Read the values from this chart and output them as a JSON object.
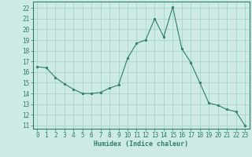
{
  "x": [
    0,
    1,
    2,
    3,
    4,
    5,
    6,
    7,
    8,
    9,
    10,
    11,
    12,
    13,
    14,
    15,
    16,
    17,
    18,
    19,
    20,
    21,
    22,
    23
  ],
  "y": [
    16.5,
    16.4,
    15.5,
    14.9,
    14.4,
    14.0,
    14.0,
    14.1,
    14.5,
    14.8,
    17.3,
    18.7,
    19.0,
    21.0,
    19.3,
    22.1,
    18.2,
    16.9,
    15.0,
    13.1,
    12.9,
    12.5,
    12.3,
    11.0
  ],
  "line_color": "#2e7d6e",
  "marker": "o",
  "marker_size": 1.8,
  "bg_color": "#ceeae5",
  "grid_color": "#a0cfc8",
  "xlabel": "Humidex (Indice chaleur)",
  "xlim": [
    -0.5,
    23.5
  ],
  "ylim": [
    10.7,
    22.6
  ],
  "yticks": [
    11,
    12,
    13,
    14,
    15,
    16,
    17,
    18,
    19,
    20,
    21,
    22
  ],
  "xticks": [
    0,
    1,
    2,
    3,
    4,
    5,
    6,
    7,
    8,
    9,
    10,
    11,
    12,
    13,
    14,
    15,
    16,
    17,
    18,
    19,
    20,
    21,
    22,
    23
  ],
  "tick_color": "#2e7d6e",
  "label_color": "#2e7d6e",
  "axis_color": "#2e7d6e",
  "xlabel_fontsize": 6.0,
  "tick_fontsize": 5.5
}
